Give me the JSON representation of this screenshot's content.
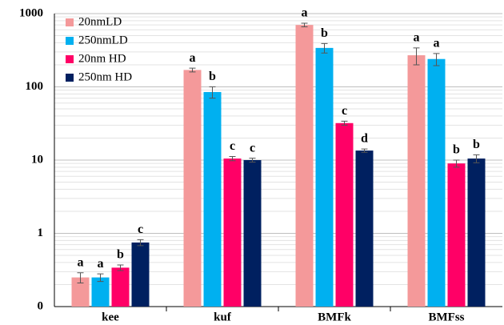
{
  "chart_data": {
    "type": "bar",
    "log_scale": true,
    "grid": true,
    "legend": "upper left",
    "categories": [
      "kee",
      "kuf",
      "BMFk",
      "BMFss"
    ],
    "series": [
      {
        "name": "20nmLD",
        "color": "#f4999a",
        "values": [
          0.25,
          170,
          700,
          270
        ],
        "errors": [
          0.04,
          10,
          40,
          70
        ],
        "letters": [
          "a",
          "a",
          "a",
          "a"
        ]
      },
      {
        "name": "250nmLD",
        "color": "#00b0f0",
        "values": [
          0.25,
          85,
          340,
          240
        ],
        "errors": [
          0.03,
          15,
          50,
          45
        ],
        "letters": [
          "a",
          "b",
          "b",
          "a"
        ]
      },
      {
        "name": "20nm HD",
        "color": "#ff0066",
        "values": [
          0.34,
          10.5,
          32,
          9
        ],
        "errors": [
          0.03,
          0.7,
          2,
          1
        ],
        "letters": [
          "b",
          "c",
          "c",
          "b"
        ]
      },
      {
        "name": "250nm HD",
        "color": "#002060",
        "values": [
          0.75,
          10,
          13.5,
          10.5
        ],
        "errors": [
          0.07,
          0.6,
          0.7,
          1.3
        ],
        "letters": [
          "c",
          "c",
          "d",
          "b"
        ]
      }
    ],
    "ylim": [
      0.1,
      1000
    ],
    "yticks": [
      {
        "value": 0.1,
        "label": "0"
      },
      1,
      10,
      100,
      1000
    ]
  }
}
